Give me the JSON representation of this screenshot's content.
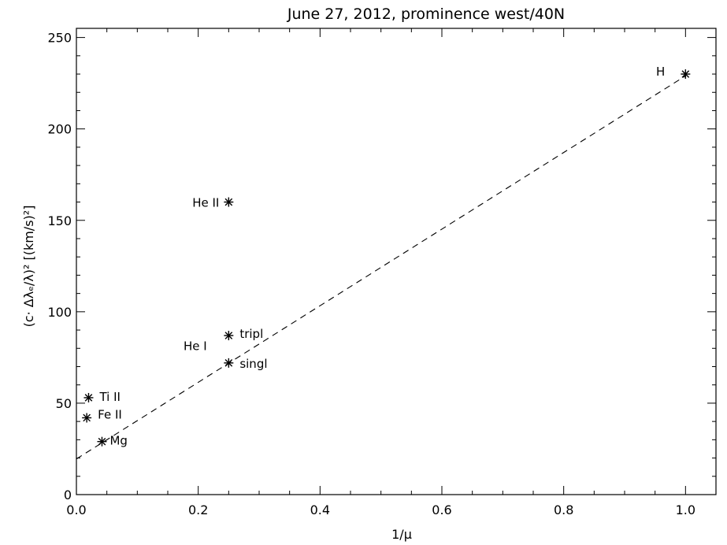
{
  "chart_data": {
    "type": "scatter",
    "title": "June 27, 2012, prominence west/40N",
    "xlabel": "1/μ",
    "ylabel": "(c· Δλₑ/λ)² [(km/s)²]",
    "xlim": [
      0.0,
      1.05
    ],
    "ylim": [
      0,
      255
    ],
    "xticks": [
      0.0,
      0.2,
      0.4,
      0.6,
      0.8,
      1.0
    ],
    "xtick_labels": [
      "0.0",
      "0.2",
      "0.4",
      "0.6",
      "0.8",
      "1.0"
    ],
    "yticks": [
      0,
      50,
      100,
      150,
      200,
      250
    ],
    "ytick_labels": [
      "0",
      "50",
      "100",
      "150",
      "200",
      "250"
    ],
    "grid": false,
    "marker": "asterisk",
    "points": [
      {
        "label": "H",
        "x": 1.0,
        "y": 230
      },
      {
        "label": "He II",
        "x": 0.25,
        "y": 160
      },
      {
        "label": "tripl",
        "x": 0.25,
        "y": 87
      },
      {
        "label": "singl",
        "x": 0.25,
        "y": 72
      },
      {
        "label": "Ti II",
        "x": 0.02,
        "y": 53
      },
      {
        "label": "Fe II",
        "x": 0.017,
        "y": 42
      },
      {
        "label": "Mg",
        "x": 0.042,
        "y": 29
      }
    ],
    "annotations": [
      {
        "text": "He I",
        "x": 0.195,
        "y": 79
      }
    ],
    "fit_line": {
      "style": "dashed",
      "x": [
        0.0,
        1.0
      ],
      "y": [
        19.5,
        229
      ]
    }
  }
}
